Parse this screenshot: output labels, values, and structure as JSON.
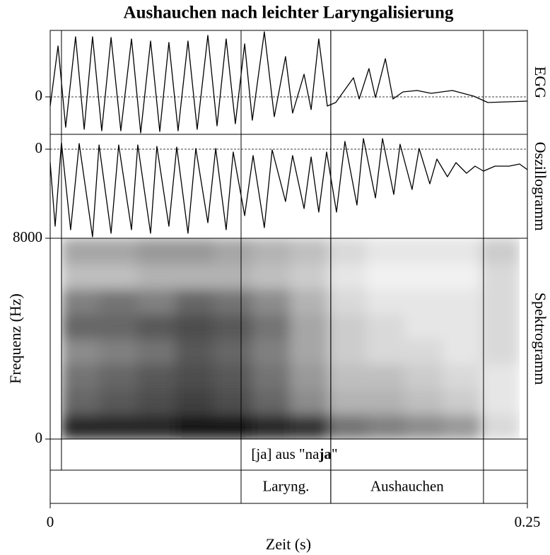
{
  "title": "Aushauchen nach leichter Laryngalisierung",
  "xlabel": "Zeit (s)",
  "xlim": [
    0,
    0.25
  ],
  "xticks": [
    0,
    0.25
  ],
  "chart_data": [
    {
      "type": "line",
      "label": "EGG",
      "color": "#000000",
      "ylim": [
        -53,
        94
      ],
      "yticks": [
        0
      ],
      "x": [
        0,
        0.0041,
        0.0081,
        0.0133,
        0.0178,
        0.0222,
        0.027,
        0.0319,
        0.037,
        0.0426,
        0.0474,
        0.0526,
        0.0574,
        0.0622,
        0.067,
        0.0722,
        0.077,
        0.0826,
        0.0874,
        0.0922,
        0.097,
        0.1019,
        0.1059,
        0.1122,
        0.1174,
        0.1233,
        0.127,
        0.133,
        0.1367,
        0.1407,
        0.1452,
        0.1496,
        0.1589,
        0.1619,
        0.167,
        0.1704,
        0.1756,
        0.1796,
        0.1848,
        0.1922,
        0.1996,
        0.2107,
        0.2219,
        0.2293,
        0.25
      ],
      "values": [
        -13,
        72,
        -43,
        85,
        -46,
        85,
        -48,
        84,
        -48,
        82,
        -51,
        79,
        -49,
        77,
        -48,
        79,
        -46,
        87,
        -41,
        82,
        -38,
        75,
        -33,
        92,
        -28,
        57,
        -23,
        32,
        -18,
        82,
        -13,
        -8,
        27,
        -3,
        40,
        -1,
        54,
        -3,
        7,
        9,
        5,
        9,
        1,
        -8,
        -6
      ]
    },
    {
      "type": "line",
      "label": "Oszillogramm",
      "color": "#000000",
      "ylim": [
        -126,
        21
      ],
      "yticks": [
        0
      ],
      "x": [
        0,
        0.0026,
        0.0059,
        0.0107,
        0.0152,
        0.0222,
        0.0256,
        0.0319,
        0.0359,
        0.0426,
        0.0459,
        0.0526,
        0.0559,
        0.0622,
        0.0663,
        0.0722,
        0.0763,
        0.0826,
        0.0867,
        0.0922,
        0.0959,
        0.1019,
        0.1063,
        0.1122,
        0.1163,
        0.1233,
        0.127,
        0.133,
        0.1367,
        0.1407,
        0.1448,
        0.15,
        0.1544,
        0.1607,
        0.1641,
        0.1704,
        0.1741,
        0.18,
        0.1833,
        0.1896,
        0.1933,
        0.1989,
        0.2026,
        0.2081,
        0.2126,
        0.2181,
        0.2226,
        0.227,
        0.233,
        0.2404,
        0.2459,
        0.25
      ],
      "values": [
        -19,
        -109,
        9,
        -114,
        8,
        -124,
        6,
        -119,
        6,
        -114,
        6,
        -119,
        4,
        -109,
        3,
        -119,
        1,
        -104,
        1,
        -114,
        -4,
        -94,
        -9,
        -111,
        -1,
        -74,
        -9,
        -84,
        -11,
        -89,
        -4,
        -89,
        11,
        -79,
        15,
        -69,
        15,
        -64,
        7,
        -57,
        1,
        -49,
        -14,
        -39,
        -19,
        -34,
        -24,
        -31,
        -24,
        -24,
        -21,
        -29
      ]
    },
    {
      "type": "heatmap",
      "label": "Spektrogramm",
      "ylabel": "Frequenz (Hz)",
      "ylim": [
        0,
        8000
      ],
      "yticks": [
        0,
        8000
      ],
      "xbins": [
        0.006,
        0.026,
        0.046,
        0.066,
        0.086,
        0.106,
        0.126,
        0.146,
        0.166,
        0.186,
        0.206,
        0.226,
        0.246
      ],
      "ybins": [
        0,
        1000,
        2000,
        3000,
        4000,
        5000,
        6000,
        7000,
        8000
      ],
      "values": [
        [
          0.85,
          0.85,
          0.85,
          0.9,
          0.9,
          0.85,
          0.8,
          0.55,
          0.5,
          0.45,
          0.4,
          0.15
        ],
        [
          0.6,
          0.65,
          0.7,
          0.75,
          0.7,
          0.6,
          0.45,
          0.3,
          0.3,
          0.25,
          0.2,
          0.1
        ],
        [
          0.55,
          0.6,
          0.65,
          0.7,
          0.65,
          0.55,
          0.4,
          0.25,
          0.25,
          0.2,
          0.15,
          0.1
        ],
        [
          0.45,
          0.5,
          0.55,
          0.65,
          0.6,
          0.5,
          0.35,
          0.2,
          0.15,
          0.15,
          0.1,
          0.15
        ],
        [
          0.6,
          0.6,
          0.65,
          0.7,
          0.65,
          0.55,
          0.35,
          0.2,
          0.15,
          0.1,
          0.1,
          0.15
        ],
        [
          0.5,
          0.55,
          0.5,
          0.6,
          0.55,
          0.45,
          0.3,
          0.15,
          0.1,
          0.1,
          0.1,
          0.15
        ],
        [
          0.25,
          0.25,
          0.3,
          0.3,
          0.3,
          0.25,
          0.2,
          0.1,
          0.05,
          0.05,
          0.05,
          0.15
        ],
        [
          0.35,
          0.35,
          0.4,
          0.4,
          0.35,
          0.3,
          0.25,
          0.15,
          0.1,
          0.1,
          0.1,
          0.2
        ]
      ]
    }
  ],
  "tiers": [
    {
      "intervals": [
        {
          "start": 0.0059,
          "end": 0.25,
          "label_parts": [
            "[ja] aus \"na",
            "ja",
            "\""
          ]
        }
      ]
    },
    {
      "intervals": [
        {
          "start": 0.1,
          "end": 0.147,
          "label": "Laryng."
        },
        {
          "start": 0.147,
          "end": 0.227,
          "label": "Aushauchen"
        }
      ]
    }
  ]
}
